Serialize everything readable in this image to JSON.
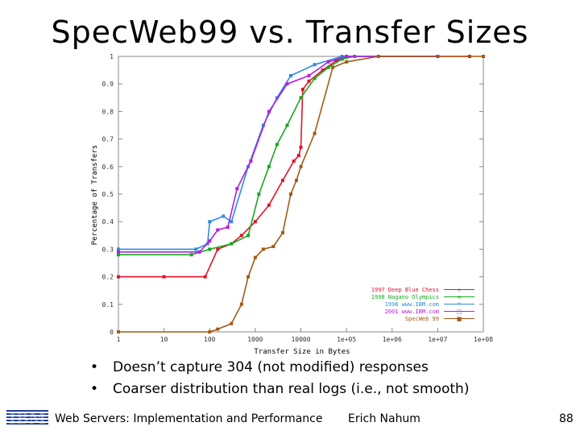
{
  "slide": {
    "title": "SpecWeb99 vs. Transfer Sizes",
    "bullets": [
      "Doesn’t capture 304 (not modified) responses",
      "Coarser distribution than real logs (i.e., not smooth)"
    ],
    "footer": {
      "logo_text": "IBM",
      "course": "Web Servers: Implementation and Performance",
      "author": "Erich Nahum",
      "page": "88"
    }
  },
  "chart_data": {
    "type": "line",
    "xlabel": "Transfer Size in Bytes",
    "ylabel": "Percentage of Transfers",
    "x_scale": "log",
    "xlim": [
      1,
      100000000
    ],
    "ylim": [
      0,
      1
    ],
    "x_ticks": [
      "1",
      "10",
      "100",
      "1000",
      "10000",
      "1e+05",
      "1e+06",
      "1e+07",
      "1e+08"
    ],
    "y_ticks": [
      "0",
      "0.1",
      "0.2",
      "0.3",
      "0.4",
      "0.5",
      "0.6",
      "0.7",
      "0.8",
      "0.9",
      "1"
    ],
    "legend_position": "bottom-right",
    "series": [
      {
        "name": "1997 Deep Blue Chess",
        "color": "#e0142a",
        "marker": "+",
        "points": [
          [
            1,
            0.2
          ],
          [
            10,
            0.2
          ],
          [
            80,
            0.2
          ],
          [
            150,
            0.3
          ],
          [
            300,
            0.32
          ],
          [
            500,
            0.35
          ],
          [
            1000,
            0.4
          ],
          [
            2000,
            0.46
          ],
          [
            4000,
            0.55
          ],
          [
            7000,
            0.62
          ],
          [
            9000,
            0.64
          ],
          [
            10000,
            0.67
          ],
          [
            11000,
            0.88
          ],
          [
            15000,
            0.91
          ],
          [
            30000,
            0.95
          ],
          [
            60000,
            0.985
          ],
          [
            100000,
            1.0
          ],
          [
            10000000,
            1.0
          ],
          [
            50000000,
            1.0
          ]
        ]
      },
      {
        "name": "1998 Nagano Olympics",
        "color": "#17a81f",
        "marker": "×",
        "points": [
          [
            1,
            0.28
          ],
          [
            40,
            0.28
          ],
          [
            100,
            0.3
          ],
          [
            300,
            0.32
          ],
          [
            700,
            0.35
          ],
          [
            1200,
            0.5
          ],
          [
            2000,
            0.6
          ],
          [
            3000,
            0.68
          ],
          [
            5000,
            0.75
          ],
          [
            10000,
            0.85
          ],
          [
            20000,
            0.92
          ],
          [
            40000,
            0.96
          ],
          [
            80000,
            0.99
          ],
          [
            150000,
            1.0
          ],
          [
            10000000,
            1.0
          ]
        ]
      },
      {
        "name": "1998 www.IBM.com",
        "color": "#2d8be0",
        "marker": "*",
        "points": [
          [
            1,
            0.3
          ],
          [
            50,
            0.3
          ],
          [
            90,
            0.32
          ],
          [
            100,
            0.4
          ],
          [
            200,
            0.42
          ],
          [
            300,
            0.4
          ],
          [
            700,
            0.6
          ],
          [
            1500,
            0.75
          ],
          [
            3000,
            0.85
          ],
          [
            6000,
            0.93
          ],
          [
            20000,
            0.97
          ],
          [
            80000,
            1.0
          ],
          [
            10000000,
            1.0
          ]
        ]
      },
      {
        "name": "2001 www.IBM.com",
        "color": "#b41fe0",
        "marker": "□",
        "points": [
          [
            1,
            0.29
          ],
          [
            60,
            0.29
          ],
          [
            100,
            0.33
          ],
          [
            150,
            0.37
          ],
          [
            250,
            0.38
          ],
          [
            400,
            0.52
          ],
          [
            800,
            0.62
          ],
          [
            2000,
            0.8
          ],
          [
            5000,
            0.9
          ],
          [
            15000,
            0.93
          ],
          [
            40000,
            0.98
          ],
          [
            100000,
            1.0
          ],
          [
            10000000,
            1.0
          ]
        ]
      },
      {
        "name": "SpecWeb 99",
        "color": "#a35a16",
        "marker": "■",
        "points": [
          [
            1,
            0
          ],
          [
            100,
            0
          ],
          [
            150,
            0.01
          ],
          [
            300,
            0.03
          ],
          [
            500,
            0.1
          ],
          [
            700,
            0.2
          ],
          [
            1000,
            0.27
          ],
          [
            1500,
            0.3
          ],
          [
            2500,
            0.31
          ],
          [
            4000,
            0.36
          ],
          [
            6000,
            0.5
          ],
          [
            8000,
            0.55
          ],
          [
            10000,
            0.6
          ],
          [
            20000,
            0.72
          ],
          [
            50000,
            0.96
          ],
          [
            100000,
            0.98
          ],
          [
            500000,
            1.0
          ],
          [
            100000000,
            1.0
          ]
        ]
      }
    ]
  }
}
